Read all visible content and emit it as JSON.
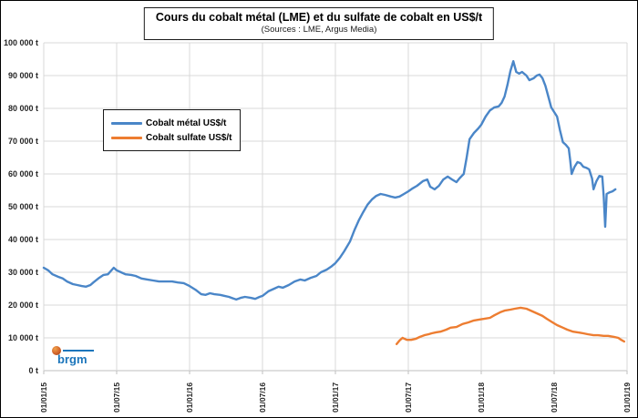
{
  "title": {
    "text": "Cours du cobalt métal (LME) et du sulfate de cobalt en US$/t",
    "subtitle": "(Sources : LME, Argus Media)"
  },
  "legend": {
    "items": [
      {
        "label": "Cobalt métal US$/t",
        "color": "#4A86C8"
      },
      {
        "label": "Cobalt sulfate US$/t",
        "color": "#ED7D31"
      }
    ]
  },
  "logo": {
    "text": "brgm",
    "orange": "#D2622A",
    "blue": "#1B75BB"
  },
  "chart_data": {
    "type": "line",
    "title": "Cours du cobalt métal (LME) et du sulfate de cobalt en US$/t",
    "subtitle": "(Sources : LME, Argus Media)",
    "xlabel": "",
    "ylabel": "",
    "x_unit": "decimal_year",
    "xlim": [
      2015.0,
      2019.0
    ],
    "ylim": [
      0,
      100000
    ],
    "grid": true,
    "gridline_color": "#d9d9d9",
    "axis_color": "#bfbfbf",
    "legend_position": "upper-left-inside",
    "y_ticks": [
      {
        "value": 0,
        "label": "0 t"
      },
      {
        "value": 10000,
        "label": "10 000 t"
      },
      {
        "value": 20000,
        "label": "20 000 t"
      },
      {
        "value": 30000,
        "label": "30 000 t"
      },
      {
        "value": 40000,
        "label": "40 000 t"
      },
      {
        "value": 50000,
        "label": "50 000 t"
      },
      {
        "value": 60000,
        "label": "60 000 t"
      },
      {
        "value": 70000,
        "label": "70 000 t"
      },
      {
        "value": 80000,
        "label": "80 000 t"
      },
      {
        "value": 90000,
        "label": "90 000 t"
      },
      {
        "value": 100000,
        "label": "100 000 t"
      }
    ],
    "x_ticks": [
      {
        "value": 2015.0,
        "label": "01/01/15"
      },
      {
        "value": 2015.5,
        "label": "01/07/15"
      },
      {
        "value": 2016.0,
        "label": "01/01/16"
      },
      {
        "value": 2016.5,
        "label": "01/07/16"
      },
      {
        "value": 2017.0,
        "label": "01/01/17"
      },
      {
        "value": 2017.5,
        "label": "01/07/17"
      },
      {
        "value": 2018.0,
        "label": "01/01/18"
      },
      {
        "value": 2018.5,
        "label": "01/07/18"
      },
      {
        "value": 2019.0,
        "label": "01/01/19"
      }
    ],
    "series": [
      {
        "name": "Cobalt métal US$/t",
        "color": "#4A86C8",
        "width": 2.4,
        "points": [
          [
            2015.0,
            31400
          ],
          [
            2015.03,
            30600
          ],
          [
            2015.06,
            29400
          ],
          [
            2015.1,
            28600
          ],
          [
            2015.13,
            28100
          ],
          [
            2015.16,
            27200
          ],
          [
            2015.2,
            26400
          ],
          [
            2015.23,
            26100
          ],
          [
            2015.26,
            25800
          ],
          [
            2015.29,
            25600
          ],
          [
            2015.32,
            26100
          ],
          [
            2015.34,
            26900
          ],
          [
            2015.38,
            28300
          ],
          [
            2015.41,
            29200
          ],
          [
            2015.44,
            29400
          ],
          [
            2015.48,
            31400
          ],
          [
            2015.5,
            30600
          ],
          [
            2015.53,
            30000
          ],
          [
            2015.56,
            29400
          ],
          [
            2015.6,
            29200
          ],
          [
            2015.63,
            28900
          ],
          [
            2015.67,
            28100
          ],
          [
            2015.71,
            27800
          ],
          [
            2015.75,
            27500
          ],
          [
            2015.79,
            27200
          ],
          [
            2015.83,
            27200
          ],
          [
            2015.88,
            27200
          ],
          [
            2015.92,
            26900
          ],
          [
            2015.96,
            26700
          ],
          [
            2016.0,
            25800
          ],
          [
            2016.04,
            24700
          ],
          [
            2016.08,
            23300
          ],
          [
            2016.11,
            23100
          ],
          [
            2016.14,
            23600
          ],
          [
            2016.17,
            23300
          ],
          [
            2016.21,
            23100
          ],
          [
            2016.24,
            22800
          ],
          [
            2016.27,
            22500
          ],
          [
            2016.3,
            22000
          ],
          [
            2016.32,
            21700
          ],
          [
            2016.35,
            22200
          ],
          [
            2016.38,
            22500
          ],
          [
            2016.42,
            22200
          ],
          [
            2016.45,
            21900
          ],
          [
            2016.48,
            22500
          ],
          [
            2016.5,
            22800
          ],
          [
            2016.54,
            24200
          ],
          [
            2016.58,
            25000
          ],
          [
            2016.61,
            25600
          ],
          [
            2016.64,
            25300
          ],
          [
            2016.68,
            26100
          ],
          [
            2016.72,
            27200
          ],
          [
            2016.76,
            27800
          ],
          [
            2016.79,
            27500
          ],
          [
            2016.83,
            28300
          ],
          [
            2016.87,
            28900
          ],
          [
            2016.9,
            30000
          ],
          [
            2016.94,
            30800
          ],
          [
            2016.97,
            31700
          ],
          [
            2017.0,
            32800
          ],
          [
            2017.03,
            34400
          ],
          [
            2017.06,
            36400
          ],
          [
            2017.1,
            39400
          ],
          [
            2017.13,
            42800
          ],
          [
            2017.16,
            45800
          ],
          [
            2017.19,
            48300
          ],
          [
            2017.22,
            50600
          ],
          [
            2017.25,
            52200
          ],
          [
            2017.28,
            53300
          ],
          [
            2017.31,
            53900
          ],
          [
            2017.34,
            53600
          ],
          [
            2017.38,
            53100
          ],
          [
            2017.41,
            52800
          ],
          [
            2017.44,
            53100
          ],
          [
            2017.47,
            53900
          ],
          [
            2017.5,
            54700
          ],
          [
            2017.53,
            55600
          ],
          [
            2017.56,
            56400
          ],
          [
            2017.6,
            57800
          ],
          [
            2017.63,
            58300
          ],
          [
            2017.65,
            56100
          ],
          [
            2017.68,
            55300
          ],
          [
            2017.71,
            56400
          ],
          [
            2017.74,
            58300
          ],
          [
            2017.77,
            59200
          ],
          [
            2017.8,
            58300
          ],
          [
            2017.83,
            57500
          ],
          [
            2017.85,
            58600
          ],
          [
            2017.88,
            60000
          ],
          [
            2017.9,
            65000
          ],
          [
            2017.92,
            70600
          ],
          [
            2017.95,
            72500
          ],
          [
            2017.98,
            73900
          ],
          [
            2018.0,
            75000
          ],
          [
            2018.03,
            77500
          ],
          [
            2018.06,
            79400
          ],
          [
            2018.09,
            80300
          ],
          [
            2018.12,
            80600
          ],
          [
            2018.14,
            81700
          ],
          [
            2018.16,
            83600
          ],
          [
            2018.18,
            87200
          ],
          [
            2018.2,
            91400
          ],
          [
            2018.22,
            94400
          ],
          [
            2018.24,
            91100
          ],
          [
            2018.26,
            90600
          ],
          [
            2018.28,
            91100
          ],
          [
            2018.31,
            90000
          ],
          [
            2018.33,
            88600
          ],
          [
            2018.36,
            89200
          ],
          [
            2018.38,
            90000
          ],
          [
            2018.4,
            90300
          ],
          [
            2018.42,
            89200
          ],
          [
            2018.44,
            86900
          ],
          [
            2018.46,
            83600
          ],
          [
            2018.48,
            80300
          ],
          [
            2018.5,
            78900
          ],
          [
            2018.52,
            77500
          ],
          [
            2018.54,
            73300
          ],
          [
            2018.56,
            69700
          ],
          [
            2018.58,
            68900
          ],
          [
            2018.6,
            67800
          ],
          [
            2018.61,
            64200
          ],
          [
            2018.62,
            60000
          ],
          [
            2018.64,
            62200
          ],
          [
            2018.66,
            63600
          ],
          [
            2018.68,
            63300
          ],
          [
            2018.7,
            62200
          ],
          [
            2018.72,
            61900
          ],
          [
            2018.74,
            61400
          ],
          [
            2018.76,
            58600
          ],
          [
            2018.77,
            55300
          ],
          [
            2018.79,
            57800
          ],
          [
            2018.81,
            59400
          ],
          [
            2018.83,
            59200
          ],
          [
            2018.84,
            53100
          ],
          [
            2018.85,
            43900
          ],
          [
            2018.86,
            53900
          ],
          [
            2018.88,
            54400
          ],
          [
            2018.9,
            54700
          ],
          [
            2018.92,
            55300
          ]
        ]
      },
      {
        "name": "Cobalt sulfate US$/t",
        "color": "#ED7D31",
        "width": 2.4,
        "points": [
          [
            2017.42,
            8100
          ],
          [
            2017.44,
            9200
          ],
          [
            2017.46,
            10000
          ],
          [
            2017.49,
            9400
          ],
          [
            2017.52,
            9400
          ],
          [
            2017.55,
            9700
          ],
          [
            2017.58,
            10300
          ],
          [
            2017.61,
            10800
          ],
          [
            2017.64,
            11100
          ],
          [
            2017.66,
            11400
          ],
          [
            2017.69,
            11700
          ],
          [
            2017.72,
            11900
          ],
          [
            2017.76,
            12500
          ],
          [
            2017.79,
            13100
          ],
          [
            2017.83,
            13300
          ],
          [
            2017.87,
            14200
          ],
          [
            2017.91,
            14700
          ],
          [
            2017.95,
            15300
          ],
          [
            2017.99,
            15600
          ],
          [
            2018.02,
            15800
          ],
          [
            2018.06,
            16100
          ],
          [
            2018.09,
            16900
          ],
          [
            2018.13,
            17800
          ],
          [
            2018.16,
            18300
          ],
          [
            2018.2,
            18600
          ],
          [
            2018.23,
            18900
          ],
          [
            2018.27,
            19200
          ],
          [
            2018.31,
            18900
          ],
          [
            2018.34,
            18300
          ],
          [
            2018.38,
            17500
          ],
          [
            2018.42,
            16700
          ],
          [
            2018.45,
            15800
          ],
          [
            2018.49,
            14700
          ],
          [
            2018.52,
            13900
          ],
          [
            2018.56,
            13100
          ],
          [
            2018.59,
            12500
          ],
          [
            2018.63,
            11900
          ],
          [
            2018.66,
            11700
          ],
          [
            2018.7,
            11400
          ],
          [
            2018.73,
            11100
          ],
          [
            2018.77,
            10800
          ],
          [
            2018.8,
            10800
          ],
          [
            2018.84,
            10600
          ],
          [
            2018.87,
            10600
          ],
          [
            2018.91,
            10300
          ],
          [
            2018.94,
            10000
          ],
          [
            2018.96,
            9400
          ],
          [
            2018.98,
            8900
          ]
        ]
      }
    ]
  }
}
